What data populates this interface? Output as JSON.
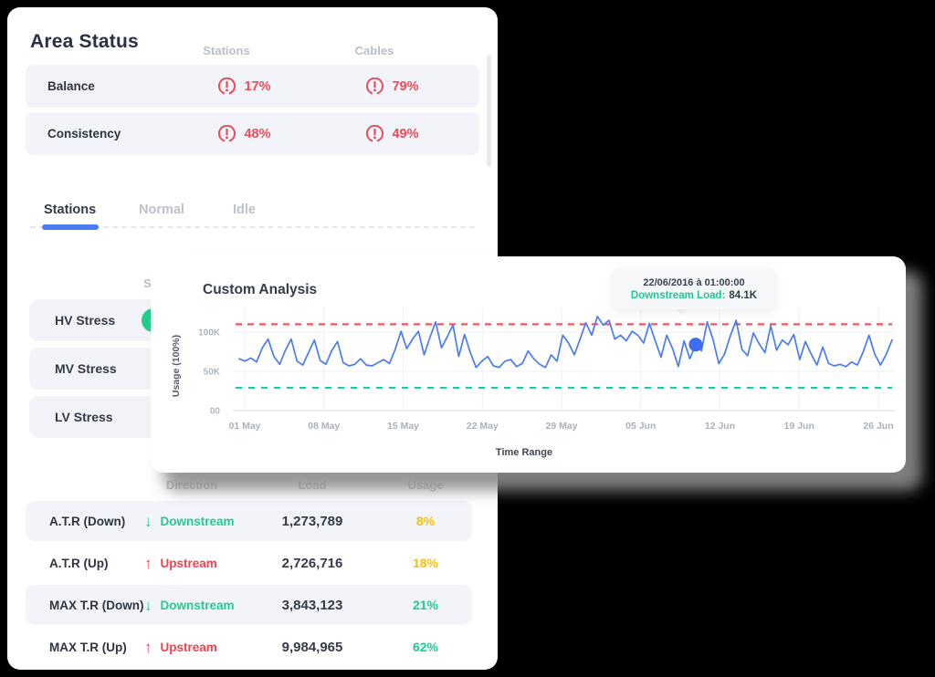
{
  "page": {
    "background": "#000000",
    "panel_bg": "#ffffff",
    "row_bg": "#f3f4f9"
  },
  "area_status": {
    "title": "Area Status",
    "columns": [
      "Stations",
      "Cables"
    ],
    "rows": [
      {
        "label": "Balance",
        "values": [
          "17%",
          "79%"
        ]
      },
      {
        "label": "Consistency",
        "values": [
          "48%",
          "49%"
        ]
      }
    ],
    "warning_color": "#ee4b58"
  },
  "tabs": {
    "items": [
      {
        "label": "Stations",
        "active": true
      },
      {
        "label": "Normal",
        "active": false
      },
      {
        "label": "Idle",
        "active": false
      }
    ],
    "accent": "#4a7bf5"
  },
  "hidden_column_fragment": "S",
  "stress_list": {
    "items": [
      {
        "label": "HV Stress",
        "has_check": true
      },
      {
        "label": "MV Stress",
        "has_check": false
      },
      {
        "label": "LV Stress",
        "has_check": false
      }
    ],
    "check_color": "#21ce8c",
    "check_glyph": "✓"
  },
  "load_table": {
    "headers": [
      "Direction",
      "Load",
      "Usage"
    ],
    "rows": [
      {
        "label": "A.T.R (Down)",
        "direction": "Downstream",
        "dir_type": "down",
        "load": "1,273,789",
        "usage": "8%",
        "usage_color": "#fdc004"
      },
      {
        "label": "A.T.R (Up)",
        "direction": "Upstream",
        "dir_type": "up",
        "load": "2,726,716",
        "usage": "18%",
        "usage_color": "#fdc004"
      },
      {
        "label": "MAX T.R (Down)",
        "direction": "Downstream",
        "dir_type": "down",
        "load": "3,843,123",
        "usage": "21%",
        "usage_color": "#1ecd92"
      },
      {
        "label": "MAX T.R (Up)",
        "direction": "Upstream",
        "dir_type": "up",
        "load": "9,984,965",
        "usage": "62%",
        "usage_color": "#1ecd92"
      }
    ],
    "down_color": "#1ecd92",
    "up_color": "#f0424f",
    "down_arrow": "↓",
    "up_arrow": "↑"
  },
  "analysis_card": {
    "title": "Custom Analysis",
    "tooltip": {
      "line1": "22/06/2016 à 01:00:00",
      "label": "Downstream Load:",
      "value": "84.1K",
      "label_color": "#1ec998"
    }
  },
  "chart_data": {
    "type": "line",
    "title": "Custom Analysis",
    "xlabel": "Time Range",
    "ylabel": "Usage (100%)",
    "y_ticks": [
      {
        "label": "00",
        "value_k": 0
      },
      {
        "label": "50K",
        "value_k": 50
      },
      {
        "label": "100K",
        "value_k": 100
      }
    ],
    "x_ticks": [
      "01 May",
      "08 May",
      "15 May",
      "22 May",
      "29 May",
      "05 Jun",
      "12 Jun",
      "19 Jun",
      "26 Jun"
    ],
    "ylim_k": [
      0,
      127
    ],
    "grid": true,
    "upper_threshold_k": 110,
    "lower_threshold_k": 29,
    "line_color": "#4a7bf5",
    "upper_color": "#f2565f",
    "lower_color": "#1cc9a1",
    "dot_color": "#3d6cf3",
    "series": [
      {
        "name": "Downstream Load",
        "unit": "K",
        "values": [
          66,
          63,
          67,
          62,
          80,
          91,
          69,
          59,
          77,
          91,
          63,
          58,
          74,
          90,
          64,
          59,
          76,
          88,
          61,
          57,
          59,
          66,
          58,
          57,
          61,
          65,
          60,
          78,
          101,
          79,
          91,
          101,
          71,
          93,
          113,
          80,
          94,
          109,
          69,
          97,
          74,
          55,
          63,
          69,
          57,
          55,
          63,
          65,
          56,
          60,
          76,
          66,
          59,
          55,
          71,
          63,
          96,
          86,
          71,
          91,
          112,
          96,
          120,
          109,
          115,
          91,
          96,
          89,
          101,
          96,
          86,
          111,
          89,
          68,
          96,
          79,
          56,
          89,
          66,
          84.1,
          76,
          113,
          91,
          60,
          72,
          95,
          115,
          78,
          70,
          99,
          85,
          74,
          108,
          77,
          90,
          84,
          97,
          65,
          88,
          72,
          58,
          81,
          60,
          57,
          59,
          56,
          62,
          58,
          75,
          96,
          72,
          58,
          72,
          90
        ]
      }
    ],
    "marked_point": {
      "index": 79,
      "value_k": 84.1
    }
  }
}
